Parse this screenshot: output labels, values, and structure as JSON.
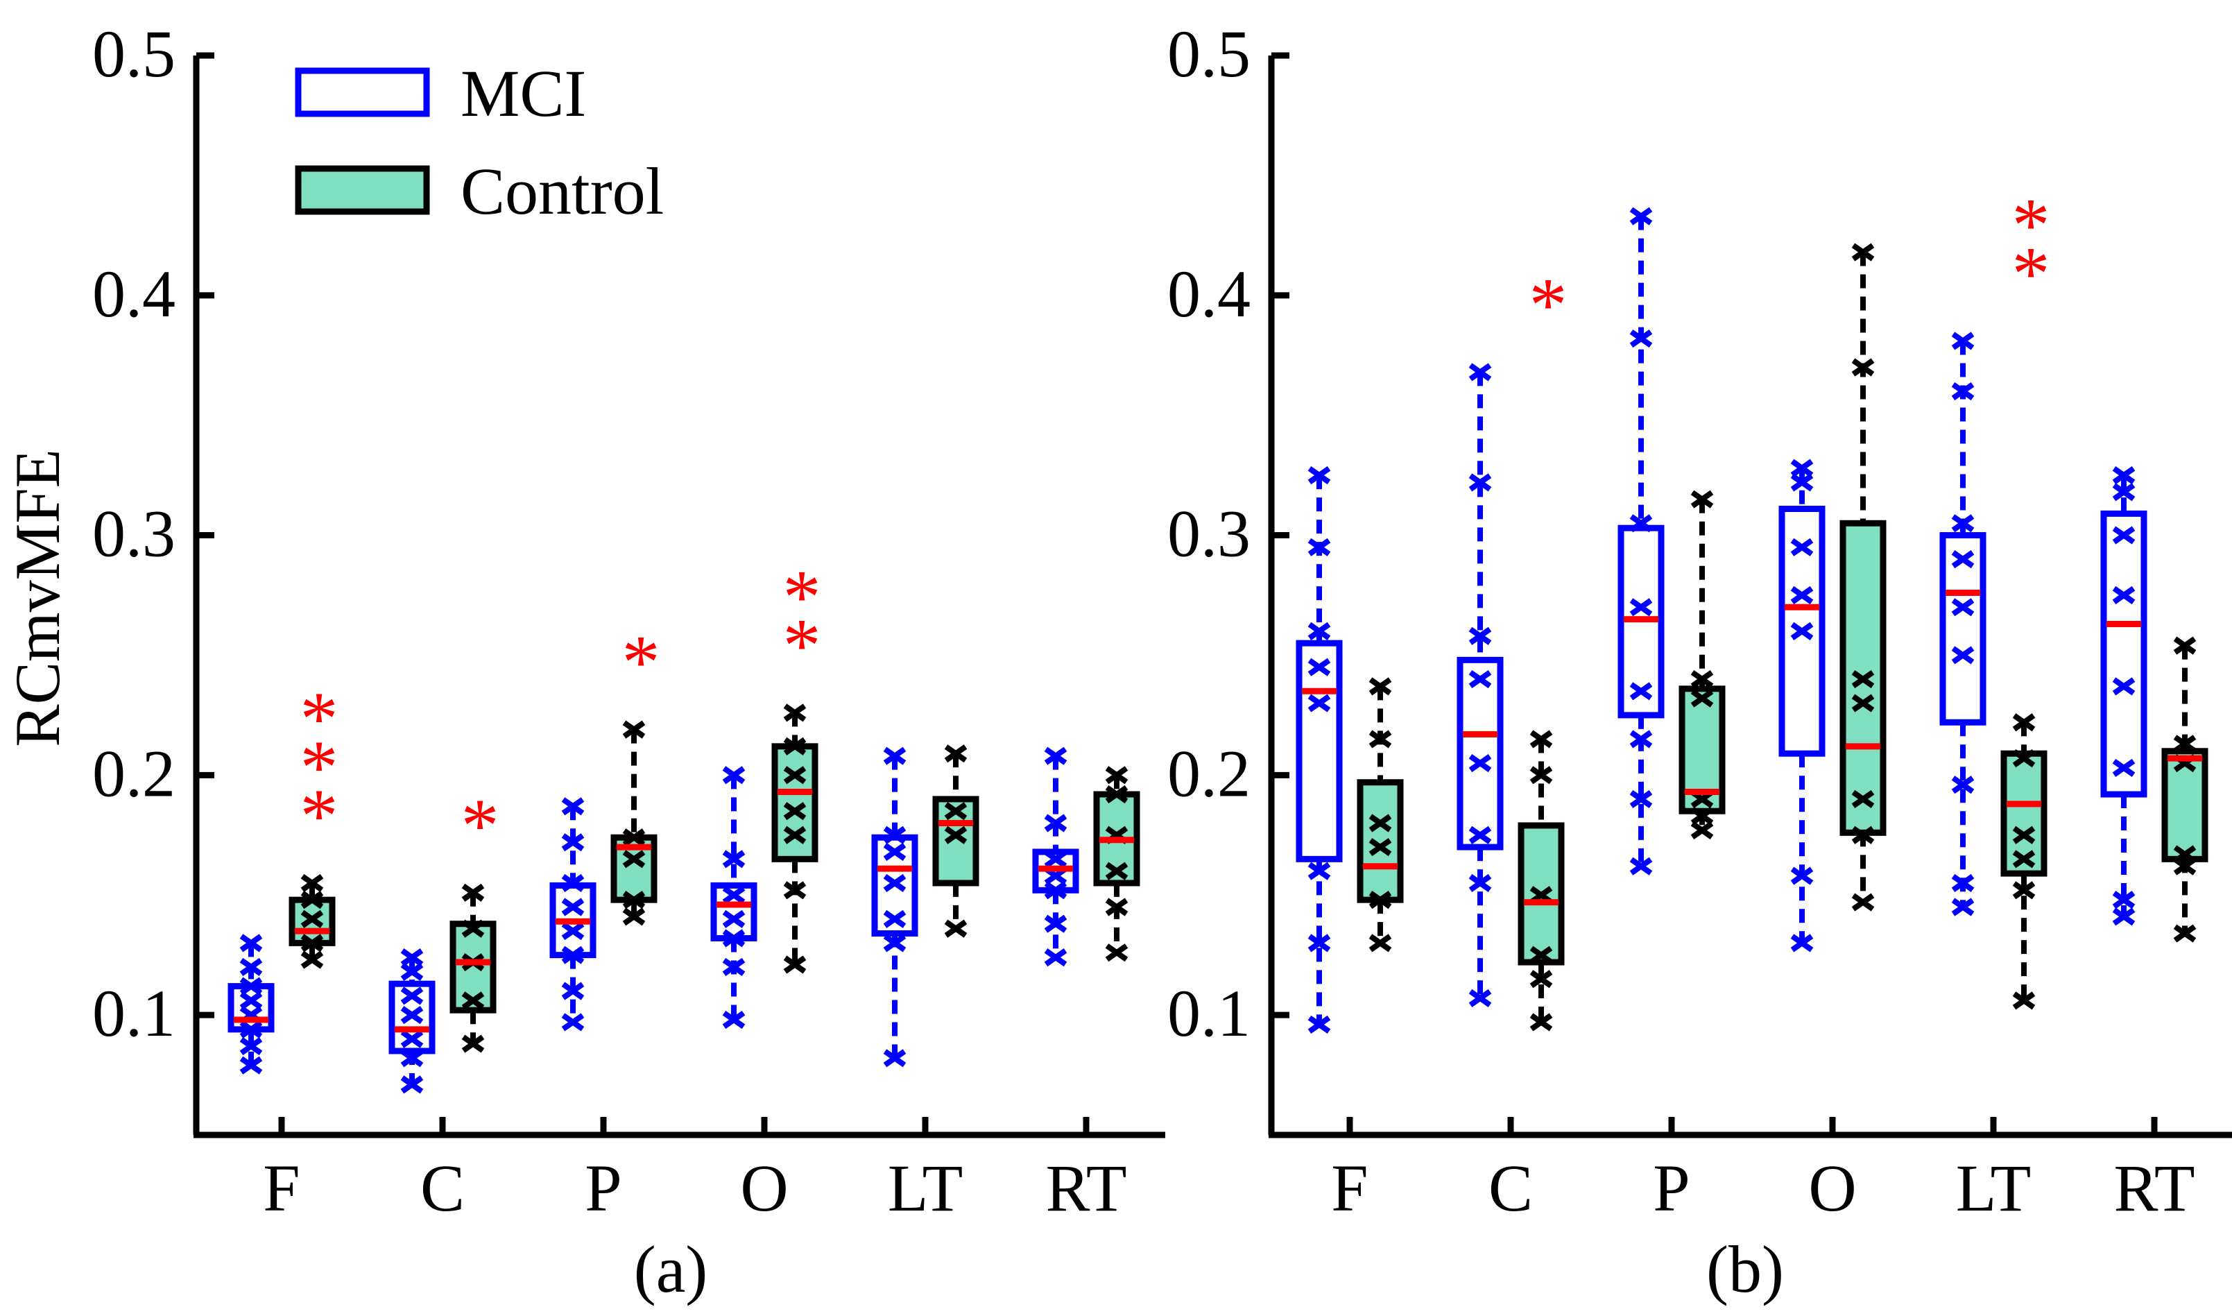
{
  "figure": {
    "ylabel": "RCmvMFE",
    "legend": {
      "placement": "top-left",
      "entries": [
        {
          "name": "MCI",
          "style": "open-box",
          "color": "#0000ff"
        },
        {
          "name": "Control",
          "style": "filled-box",
          "color": "#000000",
          "fill": "#80dfc0"
        }
      ]
    },
    "colors": {
      "mci": "#0000ff",
      "control": "#000000",
      "control_fill": "#80dfc0",
      "median": "#ff0000",
      "significance": "#ff0000"
    }
  },
  "chart_data": [
    {
      "type": "boxplot",
      "panel_label": "(a)",
      "ylabel": "RCmvMFE",
      "ylim": [
        0.05,
        0.5
      ],
      "yticks": [
        0.1,
        0.2,
        0.3,
        0.4,
        0.5
      ],
      "ytick_labels": [
        "0.1",
        "0.2",
        "0.3",
        "0.4",
        "0.5"
      ],
      "categories": [
        "F",
        "C",
        "P",
        "O",
        "LT",
        "RT"
      ],
      "series": [
        {
          "name": "MCI",
          "boxes": [
            {
              "min": 0.079,
              "q1": 0.094,
              "median": 0.098,
              "q3": 0.112,
              "max": 0.13,
              "points": [
                0.079,
                0.087,
                0.094,
                0.1,
                0.106,
                0.112,
                0.12,
                0.13
              ]
            },
            {
              "min": 0.071,
              "q1": 0.085,
              "median": 0.094,
              "q3": 0.113,
              "max": 0.124,
              "points": [
                0.071,
                0.082,
                0.09,
                0.1,
                0.108,
                0.118,
                0.124
              ]
            },
            {
              "min": 0.097,
              "q1": 0.125,
              "median": 0.139,
              "q3": 0.154,
              "max": 0.187,
              "points": [
                0.097,
                0.11,
                0.125,
                0.135,
                0.145,
                0.155,
                0.172,
                0.187
              ]
            },
            {
              "min": 0.098,
              "q1": 0.132,
              "median": 0.146,
              "q3": 0.154,
              "max": 0.2,
              "points": [
                0.098,
                0.12,
                0.132,
                0.14,
                0.15,
                0.165,
                0.2
              ]
            },
            {
              "min": 0.082,
              "q1": 0.134,
              "median": 0.161,
              "q3": 0.174,
              "max": 0.208,
              "points": [
                0.082,
                0.13,
                0.14,
                0.155,
                0.168,
                0.175,
                0.208
              ]
            },
            {
              "min": 0.124,
              "q1": 0.152,
              "median": 0.161,
              "q3": 0.168,
              "max": 0.208,
              "points": [
                0.124,
                0.138,
                0.152,
                0.158,
                0.165,
                0.18,
                0.208
              ]
            }
          ]
        },
        {
          "name": "Control",
          "boxes": [
            {
              "min": 0.123,
              "q1": 0.13,
              "median": 0.135,
              "q3": 0.148,
              "max": 0.155,
              "points": [
                0.123,
                0.13,
                0.14,
                0.148,
                0.155
              ]
            },
            {
              "min": 0.088,
              "q1": 0.102,
              "median": 0.122,
              "q3": 0.138,
              "max": 0.151,
              "points": [
                0.088,
                0.106,
                0.122,
                0.136,
                0.151
              ]
            },
            {
              "min": 0.141,
              "q1": 0.148,
              "median": 0.17,
              "q3": 0.174,
              "max": 0.219,
              "points": [
                0.141,
                0.148,
                0.165,
                0.174,
                0.219
              ]
            },
            {
              "min": 0.121,
              "q1": 0.165,
              "median": 0.193,
              "q3": 0.212,
              "max": 0.226,
              "points": [
                0.121,
                0.152,
                0.175,
                0.185,
                0.2,
                0.212,
                0.226
              ]
            },
            {
              "min": 0.136,
              "q1": 0.155,
              "median": 0.18,
              "q3": 0.19,
              "max": 0.209,
              "points": [
                0.136,
                0.175,
                0.185,
                0.209
              ]
            },
            {
              "min": 0.126,
              "q1": 0.155,
              "median": 0.173,
              "q3": 0.192,
              "max": 0.2,
              "points": [
                0.126,
                0.145,
                0.16,
                0.175,
                0.192,
                0.2
              ]
            }
          ]
        }
      ],
      "significance": [
        {
          "category": "F",
          "label": "***"
        },
        {
          "category": "C",
          "label": "*"
        },
        {
          "category": "P",
          "label": "*"
        },
        {
          "category": "O",
          "label": "**"
        }
      ]
    },
    {
      "type": "boxplot",
      "panel_label": "(b)",
      "ylabel": "",
      "ylim": [
        0.05,
        0.5
      ],
      "yticks": [
        0.1,
        0.2,
        0.3,
        0.4,
        0.5
      ],
      "ytick_labels": [
        "0.1",
        "0.2",
        "0.3",
        "0.4",
        "0.5"
      ],
      "categories": [
        "F",
        "C",
        "P",
        "O",
        "LT",
        "RT"
      ],
      "series": [
        {
          "name": "MCI",
          "boxes": [
            {
              "min": 0.096,
              "q1": 0.165,
              "median": 0.235,
              "q3": 0.255,
              "max": 0.325,
              "points": [
                0.096,
                0.13,
                0.16,
                0.23,
                0.245,
                0.26,
                0.295,
                0.325
              ]
            },
            {
              "min": 0.107,
              "q1": 0.17,
              "median": 0.217,
              "q3": 0.248,
              "max": 0.368,
              "points": [
                0.107,
                0.155,
                0.175,
                0.205,
                0.24,
                0.258,
                0.322,
                0.368
              ]
            },
            {
              "min": 0.162,
              "q1": 0.225,
              "median": 0.265,
              "q3": 0.303,
              "max": 0.433,
              "points": [
                0.162,
                0.19,
                0.215,
                0.235,
                0.27,
                0.305,
                0.382,
                0.433
              ]
            },
            {
              "min": 0.13,
              "q1": 0.209,
              "median": 0.27,
              "q3": 0.311,
              "max": 0.328,
              "points": [
                0.13,
                0.158,
                0.26,
                0.275,
                0.295,
                0.322,
                0.328
              ]
            },
            {
              "min": 0.145,
              "q1": 0.222,
              "median": 0.276,
              "q3": 0.3,
              "max": 0.381,
              "points": [
                0.145,
                0.155,
                0.196,
                0.25,
                0.27,
                0.29,
                0.305,
                0.36,
                0.381
              ]
            },
            {
              "min": 0.141,
              "q1": 0.192,
              "median": 0.263,
              "q3": 0.309,
              "max": 0.325,
              "points": [
                0.141,
                0.148,
                0.203,
                0.237,
                0.275,
                0.3,
                0.318,
                0.325
              ]
            }
          ]
        },
        {
          "name": "Control",
          "boxes": [
            {
              "min": 0.13,
              "q1": 0.148,
              "median": 0.162,
              "q3": 0.197,
              "max": 0.237,
              "points": [
                0.13,
                0.148,
                0.17,
                0.18,
                0.215,
                0.237
              ]
            },
            {
              "min": 0.097,
              "q1": 0.122,
              "median": 0.147,
              "q3": 0.179,
              "max": 0.215,
              "points": [
                0.097,
                0.115,
                0.125,
                0.15,
                0.2,
                0.215
              ]
            },
            {
              "min": 0.177,
              "q1": 0.185,
              "median": 0.193,
              "q3": 0.236,
              "max": 0.315,
              "points": [
                0.177,
                0.183,
                0.19,
                0.232,
                0.24,
                0.315
              ]
            },
            {
              "min": 0.147,
              "q1": 0.176,
              "median": 0.212,
              "q3": 0.305,
              "max": 0.418,
              "points": [
                0.147,
                0.175,
                0.19,
                0.23,
                0.24,
                0.37,
                0.418
              ]
            },
            {
              "min": 0.106,
              "q1": 0.159,
              "median": 0.188,
              "q3": 0.209,
              "max": 0.222,
              "points": [
                0.106,
                0.152,
                0.165,
                0.175,
                0.207,
                0.222
              ]
            },
            {
              "min": 0.134,
              "q1": 0.165,
              "median": 0.207,
              "q3": 0.21,
              "max": 0.254,
              "points": [
                0.134,
                0.162,
                0.167,
                0.205,
                0.213,
                0.254
              ]
            }
          ]
        }
      ],
      "significance": [
        {
          "category": "C",
          "label": "*"
        },
        {
          "category": "LT",
          "label": "**"
        }
      ]
    }
  ]
}
